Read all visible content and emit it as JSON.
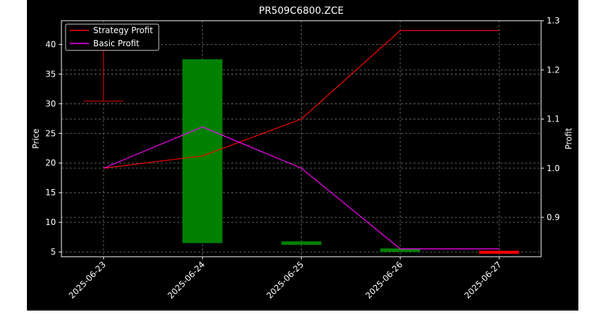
{
  "chart_data": {
    "type": "candlestick",
    "title": "PR509C6800.ZCE",
    "xlabel": "",
    "ylabel_left": "Price",
    "ylabel_right": "Profit",
    "categories": [
      "2025-06-23",
      "2025-06-24",
      "2025-06-25",
      "2025-06-26",
      "2025-06-27"
    ],
    "ylim_left": [
      4.2,
      44.0
    ],
    "ylim_right": [
      0.82,
      1.3
    ],
    "yticks_left": [
      5,
      10,
      15,
      20,
      25,
      30,
      35,
      40
    ],
    "yticks_right": [
      0.9,
      1.0,
      1.1,
      1.2,
      1.3
    ],
    "grid": true,
    "legend_position": "top-left",
    "candles": [
      {
        "date": "2025-06-23",
        "open": 30.5,
        "close": 30.5,
        "high": 42.0,
        "low": 30.5,
        "color": "#ff0000"
      },
      {
        "date": "2025-06-24",
        "open": 6.5,
        "close": 37.5,
        "high": 37.5,
        "low": 6.5,
        "color": "#008000"
      },
      {
        "date": "2025-06-25",
        "open": 6.2,
        "close": 6.8,
        "high": 6.8,
        "low": 6.2,
        "color": "#008000"
      },
      {
        "date": "2025-06-26",
        "open": 5.0,
        "close": 5.6,
        "high": 5.6,
        "low": 5.0,
        "color": "#008000"
      },
      {
        "date": "2025-06-27",
        "open": 5.2,
        "close": 4.7,
        "high": 5.2,
        "low": 4.7,
        "color": "#ff0000"
      }
    ],
    "series": [
      {
        "name": "Strategy Profit",
        "axis": "right",
        "color": "#ff0000",
        "values": [
          1.0,
          1.025,
          1.1,
          1.28,
          1.28
        ]
      },
      {
        "name": "Basic Profit",
        "axis": "right",
        "color": "#ff00ff",
        "values": [
          1.0,
          1.084,
          1.0,
          0.836,
          0.836
        ]
      }
    ]
  }
}
